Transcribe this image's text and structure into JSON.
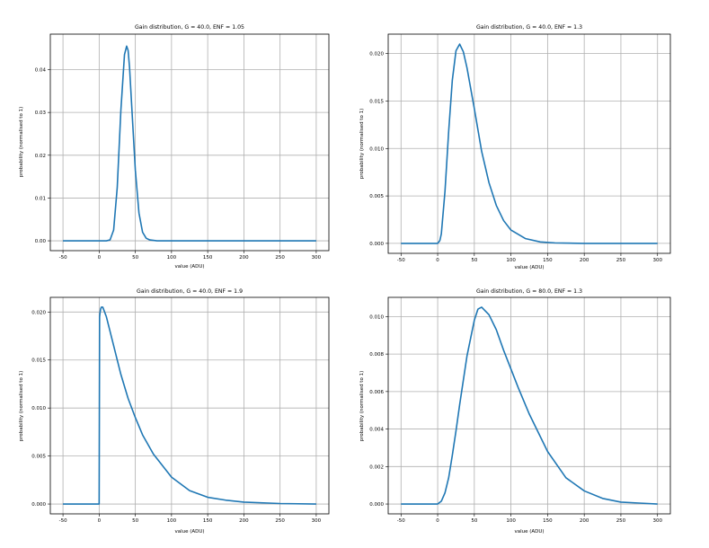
{
  "chart_data": [
    {
      "type": "line",
      "title": "Gain distribution, G = 40.0, ENF = 1.05",
      "xlabel": "value (ADU)",
      "ylabel": "probability (normalised to 1)",
      "xlim": [
        -50,
        300
      ],
      "ylim": [
        0,
        0.046
      ],
      "xticks": [
        "-50",
        "0",
        "50",
        "100",
        "150",
        "200",
        "250",
        "300"
      ],
      "yticks": [
        "0.00",
        "0.01",
        "0.02",
        "0.03",
        "0.04"
      ],
      "grid": true,
      "color": "#1f77b4",
      "series": [
        {
          "x": [
            -50,
            0,
            10,
            15,
            20,
            25,
            30,
            35,
            38,
            40,
            42,
            45,
            50,
            55,
            60,
            65,
            70,
            80,
            100,
            300
          ],
          "y": [
            0,
            0,
            0,
            0.0002,
            0.0025,
            0.0125,
            0.0305,
            0.0435,
            0.0455,
            0.0445,
            0.0405,
            0.0315,
            0.0165,
            0.0065,
            0.002,
            0.0006,
            0.0002,
            0,
            0,
            0
          ]
        }
      ]
    },
    {
      "type": "line",
      "title": "Gain distribution, G = 40.0, ENF = 1.3",
      "xlabel": "value (ADU)",
      "ylabel": "probability (normalised to 1)",
      "xlim": [
        -50,
        300
      ],
      "ylim": [
        0,
        0.021
      ],
      "xticks": [
        "-50",
        "0",
        "50",
        "100",
        "150",
        "200",
        "250",
        "300"
      ],
      "yticks": [
        "0.000",
        "0.005",
        "0.010",
        "0.015",
        "0.020"
      ],
      "grid": true,
      "color": "#1f77b4",
      "series": [
        {
          "x": [
            -50,
            0,
            3,
            5,
            10,
            15,
            20,
            25,
            30,
            35,
            40,
            50,
            60,
            70,
            80,
            90,
            100,
            120,
            140,
            160,
            200,
            300
          ],
          "y": [
            0,
            0,
            0.0003,
            0.001,
            0.0055,
            0.0118,
            0.0172,
            0.0203,
            0.021,
            0.0202,
            0.0185,
            0.0142,
            0.0097,
            0.0064,
            0.004,
            0.0024,
            0.0014,
            0.0005,
            0.00015,
            5e-05,
            0,
            0
          ]
        }
      ]
    },
    {
      "type": "line",
      "title": "Gain distribution, G = 40.0, ENF = 1.9",
      "xlabel": "value (ADU)",
      "ylabel": "probability (normalised to 1)",
      "xlim": [
        -50,
        300
      ],
      "ylim": [
        0,
        0.0205
      ],
      "xticks": [
        "-50",
        "0",
        "50",
        "100",
        "150",
        "200",
        "250",
        "300"
      ],
      "yticks": [
        "0.000",
        "0.005",
        "0.010",
        "0.015",
        "0.020"
      ],
      "grid": true,
      "color": "#1f77b4",
      "series": [
        {
          "x": [
            -50,
            0,
            0.6,
            1.2,
            2,
            3,
            5,
            10,
            20,
            30,
            40,
            50,
            60,
            75,
            100,
            125,
            150,
            175,
            200,
            250,
            300
          ],
          "y": [
            0,
            0,
            0.0195,
            0.0199,
            0.0203,
            0.0205,
            0.0205,
            0.0195,
            0.0165,
            0.0135,
            0.011,
            0.009,
            0.0072,
            0.0052,
            0.0028,
            0.0014,
            0.0007,
            0.0004,
            0.0002,
            5e-05,
            0
          ]
        }
      ]
    },
    {
      "type": "line",
      "title": "Gain distribution, G = 80.0, ENF = 1.3",
      "xlabel": "value (ADU)",
      "ylabel": "probability (normalised to 1)",
      "xlim": [
        -50,
        300
      ],
      "ylim": [
        0,
        0.0105
      ],
      "xticks": [
        "-50",
        "0",
        "50",
        "100",
        "150",
        "200",
        "250",
        "300"
      ],
      "yticks": [
        "0.000",
        "0.002",
        "0.004",
        "0.006",
        "0.008",
        "0.010"
      ],
      "grid": true,
      "color": "#1f77b4",
      "series": [
        {
          "x": [
            -50,
            0,
            5,
            10,
            15,
            20,
            25,
            30,
            40,
            50,
            55,
            60,
            70,
            80,
            90,
            100,
            110,
            125,
            150,
            175,
            200,
            225,
            250,
            275,
            300
          ],
          "y": [
            0,
            0,
            0.00015,
            0.0006,
            0.0014,
            0.0026,
            0.0039,
            0.0053,
            0.0079,
            0.0098,
            0.0104,
            0.0105,
            0.0101,
            0.0093,
            0.0082,
            0.0072,
            0.0062,
            0.0048,
            0.0028,
            0.0014,
            0.0007,
            0.0003,
            0.0001,
            5e-05,
            0
          ]
        }
      ]
    }
  ]
}
